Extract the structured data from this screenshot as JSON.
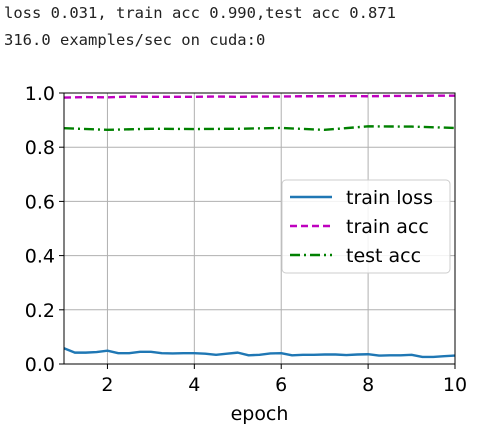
{
  "log": {
    "line1": "loss 0.031, train acc 0.990,test acc 0.871",
    "line2": "316.0 examples/sec on cuda:0"
  },
  "chart_data": {
    "type": "line",
    "title": "",
    "xlabel": "epoch",
    "ylabel": "",
    "xlim": [
      1,
      10
    ],
    "ylim": [
      0,
      1
    ],
    "xticks": [
      2,
      4,
      6,
      8,
      10
    ],
    "yticks": [
      0.0,
      0.2,
      0.4,
      0.6,
      0.8,
      1.0
    ],
    "xtick_labels": [
      "2",
      "4",
      "6",
      "8",
      "10"
    ],
    "ytick_labels": [
      "0.0",
      "0.2",
      "0.4",
      "0.6",
      "0.8",
      "1.0"
    ],
    "grid": true,
    "legend_position": "center-right",
    "series": [
      {
        "name": "train loss",
        "color": "#1f77b4",
        "style": "solid",
        "x": [
          1.0,
          1.25,
          1.5,
          1.75,
          2.0,
          2.25,
          2.5,
          2.75,
          3.0,
          3.25,
          3.5,
          3.75,
          4.0,
          4.25,
          4.5,
          4.75,
          5.0,
          5.25,
          5.5,
          5.75,
          6.0,
          6.25,
          6.5,
          6.75,
          7.0,
          7.25,
          7.5,
          7.75,
          8.0,
          8.25,
          8.5,
          8.75,
          9.0,
          9.25,
          9.5,
          9.75,
          10.0
        ],
        "y": [
          0.058,
          0.042,
          0.042,
          0.044,
          0.049,
          0.04,
          0.04,
          0.045,
          0.045,
          0.04,
          0.039,
          0.04,
          0.04,
          0.038,
          0.034,
          0.038,
          0.042,
          0.032,
          0.034,
          0.039,
          0.04,
          0.032,
          0.034,
          0.034,
          0.035,
          0.035,
          0.033,
          0.035,
          0.036,
          0.031,
          0.032,
          0.032,
          0.034,
          0.026,
          0.026,
          0.029,
          0.031
        ]
      },
      {
        "name": "train acc",
        "color": "#bf00bf",
        "style": "dashed",
        "x": [
          1.0,
          1.5,
          2.0,
          2.5,
          3.0,
          3.5,
          4.0,
          4.5,
          5.0,
          5.5,
          6.0,
          6.5,
          7.0,
          7.5,
          8.0,
          8.5,
          9.0,
          9.5,
          10.0
        ],
        "y": [
          0.983,
          0.985,
          0.984,
          0.987,
          0.986,
          0.986,
          0.986,
          0.987,
          0.986,
          0.987,
          0.987,
          0.988,
          0.988,
          0.989,
          0.988,
          0.989,
          0.989,
          0.99,
          0.99
        ]
      },
      {
        "name": "test acc",
        "color": "#008000",
        "style": "dashdot",
        "x": [
          1,
          2,
          3,
          4,
          5,
          6,
          7,
          8,
          9,
          10
        ],
        "y": [
          0.87,
          0.864,
          0.868,
          0.867,
          0.868,
          0.871,
          0.864,
          0.877,
          0.876,
          0.871
        ]
      }
    ]
  }
}
